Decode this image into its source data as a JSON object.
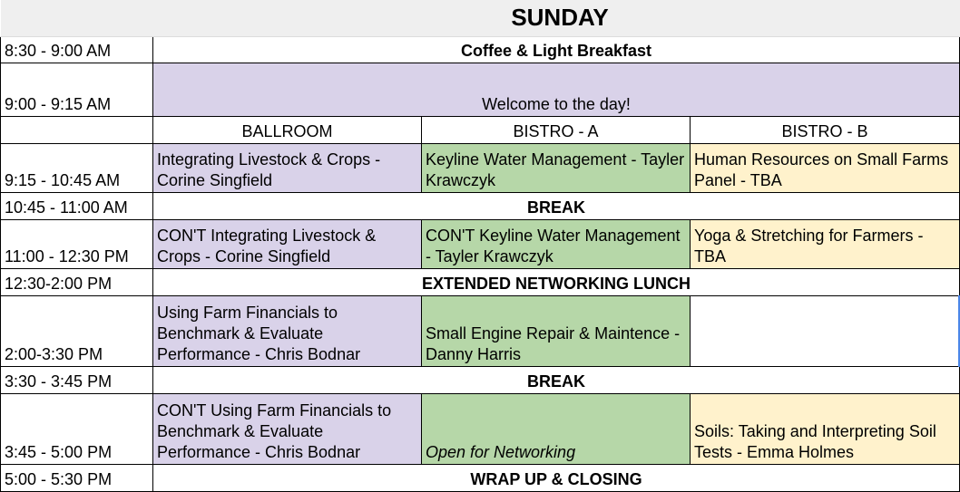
{
  "title": "SUNDAY",
  "rooms": [
    "BALLROOM",
    "BISTRO - A",
    "BISTRO - B"
  ],
  "times": [
    "8:30 - 9:00 AM",
    "9:00 - 9:15 AM",
    "9:15 - 10:45 AM",
    "10:45 - 11:00 AM",
    "11:00 - 12:30 PM",
    "12:30-2:00 PM",
    "2:00-3:30 PM",
    "3:30 - 3:45 PM",
    "3:45 - 5:00 PM",
    "5:00 - 5:30 PM"
  ],
  "plenary": {
    "breakfast": "Coffee & Light Breakfast",
    "welcome": "Welcome to the day!",
    "break1": "BREAK",
    "lunch": "EXTENDED NETWORKING LUNCH",
    "break2": "BREAK",
    "closing": "WRAP UP & CLOSING"
  },
  "sessions": {
    "s1": [
      "Integrating Livestock & Crops - Corine Singfield",
      "Keyline Water Management - Tayler Krawczyk",
      "Human Resources on Small Farms Panel - TBA"
    ],
    "s2": [
      "CON'T Integrating Livestock & Crops - Corine Singfield",
      "CON'T Keyline Water Management - Tayler Krawczyk",
      "Yoga & Stretching for Farmers - TBA"
    ],
    "s3": [
      "Using Farm Financials to Benchmark & Evaluate Performance - Chris Bodnar",
      "Small Engine Repair & Maintence - Danny Harris",
      ""
    ],
    "s4": [
      "CON'T Using Farm Financials to Benchmark & Evaluate Performance - Chris Bodnar",
      "Open for Networking",
      "Soils: Taking and Interpreting Soil Tests - Emma Holmes"
    ]
  },
  "colors": {
    "ballroom": "#d9d2e9",
    "bistro_a": "#b6d7a8",
    "bistro_b": "#fff2cc",
    "header": "#efefef",
    "selection": "#4a86e8"
  }
}
